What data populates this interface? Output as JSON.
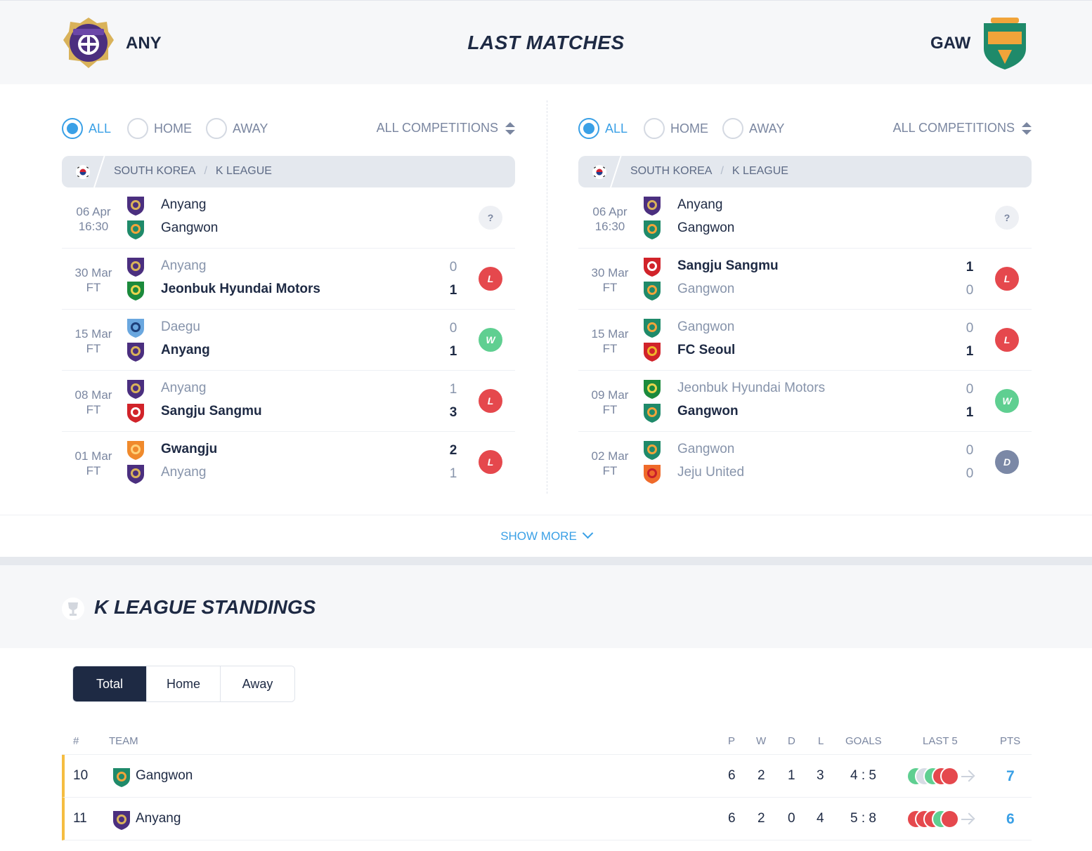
{
  "header": {
    "home_abbr": "ANY",
    "away_abbr": "GAW",
    "title": "LAST MATCHES"
  },
  "left_panel": {
    "filters": [
      "ALL",
      "HOME",
      "AWAY"
    ],
    "active_filter": "ALL",
    "competition_select": "ALL COMPETITIONS",
    "league": {
      "country": "SOUTH KOREA",
      "name": "K LEAGUE"
    },
    "matches": [
      {
        "date": "06 Apr",
        "time": "16:30",
        "home": "Anyang",
        "away": "Gangwon",
        "home_score": "",
        "away_score": "",
        "result": "?",
        "winner": "none"
      },
      {
        "date": "30 Mar",
        "time": "FT",
        "home": "Anyang",
        "away": "Jeonbuk Hyundai Motors",
        "home_score": "0",
        "away_score": "1",
        "result": "L",
        "winner": "away"
      },
      {
        "date": "15 Mar",
        "time": "FT",
        "home": "Daegu",
        "away": "Anyang",
        "home_score": "0",
        "away_score": "1",
        "result": "W",
        "winner": "away"
      },
      {
        "date": "08 Mar",
        "time": "FT",
        "home": "Anyang",
        "away": "Sangju Sangmu",
        "home_score": "1",
        "away_score": "3",
        "result": "L",
        "winner": "away"
      },
      {
        "date": "01 Mar",
        "time": "FT",
        "home": "Gwangju",
        "away": "Anyang",
        "home_score": "2",
        "away_score": "1",
        "result": "L",
        "winner": "home"
      }
    ]
  },
  "right_panel": {
    "filters": [
      "ALL",
      "HOME",
      "AWAY"
    ],
    "active_filter": "ALL",
    "competition_select": "ALL COMPETITIONS",
    "league": {
      "country": "SOUTH KOREA",
      "name": "K LEAGUE"
    },
    "matches": [
      {
        "date": "06 Apr",
        "time": "16:30",
        "home": "Anyang",
        "away": "Gangwon",
        "home_score": "",
        "away_score": "",
        "result": "?",
        "winner": "none"
      },
      {
        "date": "30 Mar",
        "time": "FT",
        "home": "Sangju Sangmu",
        "away": "Gangwon",
        "home_score": "1",
        "away_score": "0",
        "result": "L",
        "winner": "home"
      },
      {
        "date": "15 Mar",
        "time": "FT",
        "home": "Gangwon",
        "away": "FC Seoul",
        "home_score": "0",
        "away_score": "1",
        "result": "L",
        "winner": "away"
      },
      {
        "date": "09 Mar",
        "time": "FT",
        "home": "Jeonbuk Hyundai Motors",
        "away": "Gangwon",
        "home_score": "0",
        "away_score": "1",
        "result": "W",
        "winner": "away"
      },
      {
        "date": "02 Mar",
        "time": "FT",
        "home": "Gangwon",
        "away": "Jeju United",
        "home_score": "0",
        "away_score": "0",
        "result": "D",
        "winner": "draw"
      }
    ]
  },
  "show_more": "SHOW MORE",
  "standings": {
    "title": "K LEAGUE STANDINGS",
    "tabs": [
      "Total",
      "Home",
      "Away"
    ],
    "active_tab": "Total",
    "columns": [
      "#",
      "TEAM",
      "P",
      "W",
      "D",
      "L",
      "GOALS",
      "LAST 5",
      "PTS"
    ],
    "rows": [
      {
        "pos": "10",
        "team": "Gangwon",
        "p": "6",
        "w": "2",
        "d": "1",
        "l": "3",
        "goals": "4 : 5",
        "last5": [
          "W",
          "D",
          "W",
          "L",
          "L"
        ],
        "pts": "7"
      },
      {
        "pos": "11",
        "team": "Anyang",
        "p": "6",
        "w": "2",
        "d": "0",
        "l": "4",
        "goals": "5 : 8",
        "last5": [
          "L",
          "L",
          "L",
          "W",
          "L"
        ],
        "pts": "6"
      }
    ]
  },
  "colors": {
    "accent": "#3aa0e6",
    "navy": "#1e2a44",
    "loss": "#e5484d",
    "win": "#5fcf91",
    "draw": "#7b88a6",
    "highlight": "#f5bd41"
  },
  "crests": {
    "Anyang": {
      "primary": "#4b2f7f",
      "secondary": "#d9b25a",
      "label": "ANYANG"
    },
    "Gangwon": {
      "primary": "#1f8a6a",
      "secondary": "#f1a43a",
      "label": "GANGWON"
    },
    "Jeonbuk Hyundai Motors": {
      "primary": "#1b8a3c",
      "secondary": "#e8d44d",
      "label": ""
    },
    "Daegu": {
      "primary": "#6aa7df",
      "secondary": "#1d3f7a",
      "label": ""
    },
    "Sangju Sangmu": {
      "primary": "#d1232a",
      "secondary": "#ffffff",
      "label": ""
    },
    "Gwangju": {
      "primary": "#f08a2c",
      "secondary": "#ffd27a",
      "label": ""
    },
    "FC Seoul": {
      "primary": "#d1232a",
      "secondary": "#f0b42a",
      "label": ""
    },
    "Jeju United": {
      "primary": "#ef6a2a",
      "secondary": "#c81e2b",
      "label": ""
    }
  }
}
